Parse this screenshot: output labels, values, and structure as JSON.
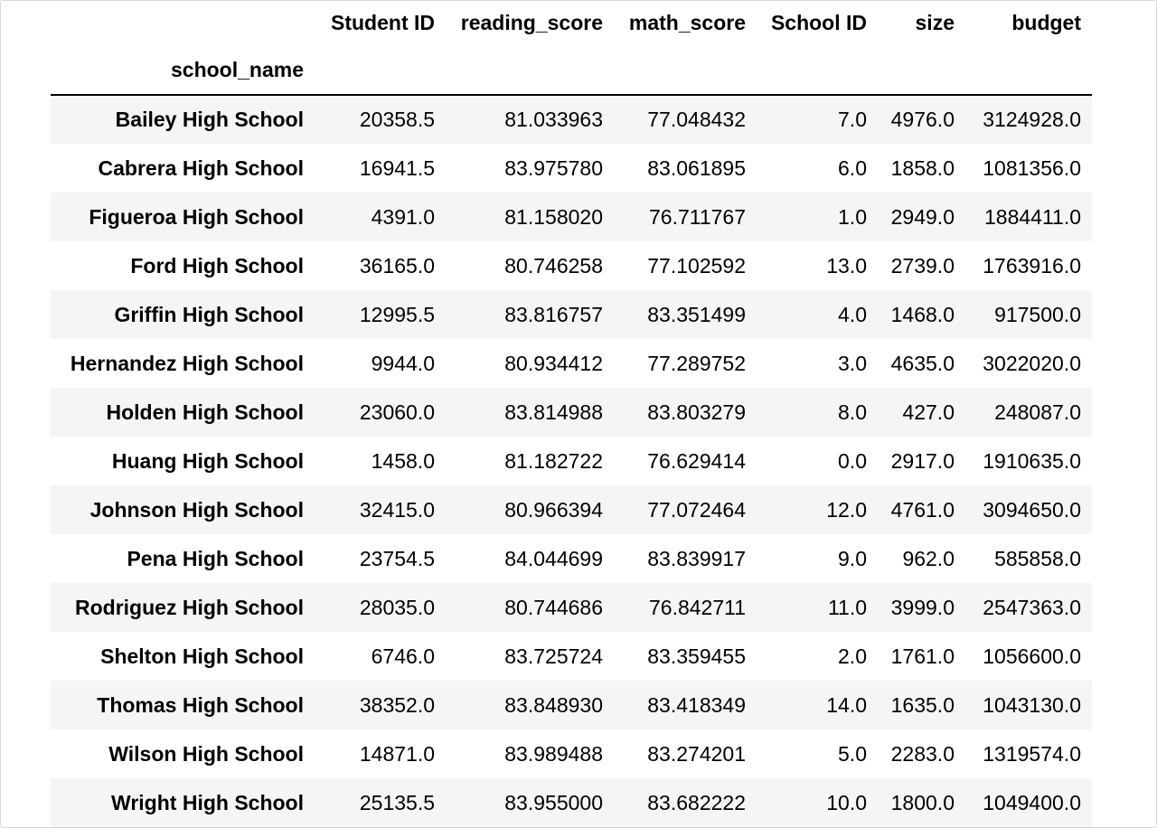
{
  "table": {
    "index_name": "school_name",
    "columns": [
      "Student ID",
      "reading_score",
      "math_score",
      "School ID",
      "size",
      "budget"
    ],
    "rows": [
      {
        "school_name": "Bailey High School",
        "values": [
          "20358.5",
          "81.033963",
          "77.048432",
          "7.0",
          "4976.0",
          "3124928.0"
        ]
      },
      {
        "school_name": "Cabrera High School",
        "values": [
          "16941.5",
          "83.975780",
          "83.061895",
          "6.0",
          "1858.0",
          "1081356.0"
        ]
      },
      {
        "school_name": "Figueroa High School",
        "values": [
          "4391.0",
          "81.158020",
          "76.711767",
          "1.0",
          "2949.0",
          "1884411.0"
        ]
      },
      {
        "school_name": "Ford High School",
        "values": [
          "36165.0",
          "80.746258",
          "77.102592",
          "13.0",
          "2739.0",
          "1763916.0"
        ]
      },
      {
        "school_name": "Griffin High School",
        "values": [
          "12995.5",
          "83.816757",
          "83.351499",
          "4.0",
          "1468.0",
          "917500.0"
        ]
      },
      {
        "school_name": "Hernandez High School",
        "values": [
          "9944.0",
          "80.934412",
          "77.289752",
          "3.0",
          "4635.0",
          "3022020.0"
        ]
      },
      {
        "school_name": "Holden High School",
        "values": [
          "23060.0",
          "83.814988",
          "83.803279",
          "8.0",
          "427.0",
          "248087.0"
        ]
      },
      {
        "school_name": "Huang High School",
        "values": [
          "1458.0",
          "81.182722",
          "76.629414",
          "0.0",
          "2917.0",
          "1910635.0"
        ]
      },
      {
        "school_name": "Johnson High School",
        "values": [
          "32415.0",
          "80.966394",
          "77.072464",
          "12.0",
          "4761.0",
          "3094650.0"
        ]
      },
      {
        "school_name": "Pena High School",
        "values": [
          "23754.5",
          "84.044699",
          "83.839917",
          "9.0",
          "962.0",
          "585858.0"
        ]
      },
      {
        "school_name": "Rodriguez High School",
        "values": [
          "28035.0",
          "80.744686",
          "76.842711",
          "11.0",
          "3999.0",
          "2547363.0"
        ]
      },
      {
        "school_name": "Shelton High School",
        "values": [
          "6746.0",
          "83.725724",
          "83.359455",
          "2.0",
          "1761.0",
          "1056600.0"
        ]
      },
      {
        "school_name": "Thomas High School",
        "values": [
          "38352.0",
          "83.848930",
          "83.418349",
          "14.0",
          "1635.0",
          "1043130.0"
        ]
      },
      {
        "school_name": "Wilson High School",
        "values": [
          "14871.0",
          "83.989488",
          "83.274201",
          "5.0",
          "2283.0",
          "1319574.0"
        ]
      },
      {
        "school_name": "Wright High School",
        "values": [
          "25135.5",
          "83.955000",
          "83.682222",
          "10.0",
          "1800.0",
          "1049400.0"
        ]
      }
    ]
  }
}
